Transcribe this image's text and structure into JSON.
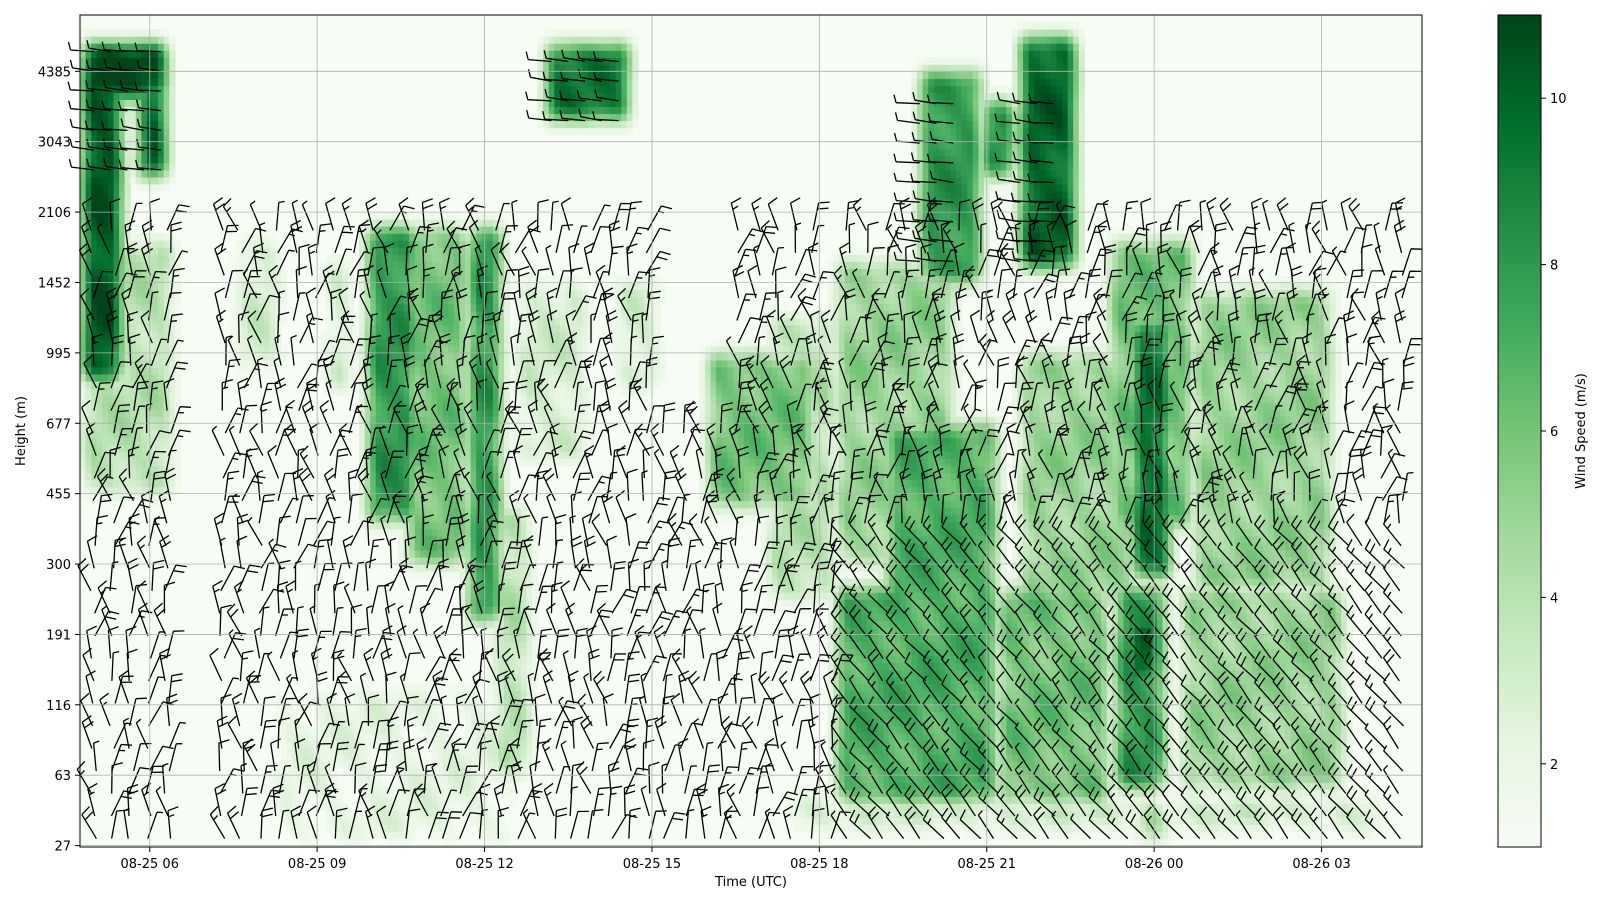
{
  "chart_data": {
    "type": "heatmap",
    "title": "",
    "xlabel": "Time (UTC)",
    "ylabel": "Height (m)",
    "x_tick_labels": [
      "08-25 06",
      "08-25 09",
      "08-25 12",
      "08-25 15",
      "08-25 18",
      "08-25 21",
      "08-26 00",
      "08-26 03"
    ],
    "x_tick_hours": [
      6,
      9,
      12,
      15,
      18,
      21,
      24,
      27
    ],
    "xlim_hours": [
      4.75,
      28.8
    ],
    "y_tick_labels": [
      "27",
      "63",
      "116",
      "191",
      "300",
      "455",
      "677",
      "995",
      "1452",
      "2106",
      "3043",
      "4385"
    ],
    "grid": true,
    "colormap": "Greens",
    "colorbar": {
      "label": "Wind Speed (m/s)",
      "ticks": [
        2,
        4,
        6,
        8,
        10
      ],
      "range": [
        1,
        11
      ]
    },
    "overlay": "wind barbs",
    "regions": [
      {
        "x": [
          4.8,
          5.5
        ],
        "levels": [
          6.6,
          11.4
        ],
        "value": 10.5
      },
      {
        "x": [
          4.8,
          6.3
        ],
        "levels": [
          10.6,
          11.4
        ],
        "value": 11
      },
      {
        "x": [
          5.8,
          6.3
        ],
        "levels": [
          9.5,
          11.4
        ],
        "value": 10
      },
      {
        "x": [
          13.1,
          14.6
        ],
        "levels": [
          10.3,
          11.4
        ],
        "value": 9
      },
      {
        "x": [
          19.8,
          20.9
        ],
        "levels": [
          8.0,
          11.0
        ],
        "value": 8
      },
      {
        "x": [
          21.6,
          22.6
        ],
        "levels": [
          8.2,
          11.5
        ],
        "value": 10
      },
      {
        "x": [
          20.9,
          21.5
        ],
        "levels": [
          9.5,
          10.6
        ],
        "value": 8
      },
      {
        "x": [
          4.8,
          6.4
        ],
        "levels": [
          5.0,
          8.6
        ],
        "value": 4
      },
      {
        "x": [
          7.6,
          8.3
        ],
        "levels": [
          6.8,
          8.6
        ],
        "value": 3
      },
      {
        "x": [
          9.2,
          9.6
        ],
        "levels": [
          6.5,
          8.3
        ],
        "value": 3
      },
      {
        "x": [
          9.9,
          10.8
        ],
        "levels": [
          4.6,
          8.8
        ],
        "value": 8
      },
      {
        "x": [
          10.6,
          11.7
        ],
        "levels": [
          4.0,
          8.8
        ],
        "value": 6
      },
      {
        "x": [
          11.7,
          12.3
        ],
        "levels": [
          3.2,
          8.8
        ],
        "value": 8
      },
      {
        "x": [
          12.2,
          12.8
        ],
        "levels": [
          1.0,
          4.8
        ],
        "value": 4
      },
      {
        "x": [
          12.6,
          13.8
        ],
        "levels": [
          5.5,
          8.0
        ],
        "value": 3
      },
      {
        "x": [
          14.4,
          15.1
        ],
        "levels": [
          6.5,
          8.0
        ],
        "value": 3
      },
      {
        "x": [
          16.0,
          17.9
        ],
        "levels": [
          4.8,
          7.0
        ],
        "value": 6
      },
      {
        "x": [
          17.1,
          18.3
        ],
        "levels": [
          3.5,
          7.5
        ],
        "value": 4
      },
      {
        "x": [
          18.3,
          20.4
        ],
        "levels": [
          4.0,
          8.3
        ],
        "value": 5
      },
      {
        "x": [
          19.2,
          21.2
        ],
        "levels": [
          3.3,
          6.0
        ],
        "value": 7
      },
      {
        "x": [
          21.6,
          23.7
        ],
        "levels": [
          3.3,
          7.0
        ],
        "value": 5
      },
      {
        "x": [
          18.3,
          21.2
        ],
        "levels": [
          0.6,
          3.7
        ],
        "value": 7
      },
      {
        "x": [
          21.2,
          23.2
        ],
        "levels": [
          0.6,
          3.7
        ],
        "value": 6
      },
      {
        "x": [
          23.2,
          24.7
        ],
        "levels": [
          4.5,
          8.6
        ],
        "value": 6
      },
      {
        "x": [
          23.6,
          24.3
        ],
        "levels": [
          3.8,
          7.5
        ],
        "value": 9.5
      },
      {
        "x": [
          23.3,
          24.2
        ],
        "levels": [
          0.8,
          3.7
        ],
        "value": 8
      },
      {
        "x": [
          23.5,
          24.1
        ],
        "levels": [
          2.3,
          3.2
        ],
        "value": 10
      },
      {
        "x": [
          24.7,
          27.2
        ],
        "levels": [
          3.6,
          7.9
        ],
        "value": 5
      },
      {
        "x": [
          24.5,
          27.4
        ],
        "levels": [
          0.8,
          3.7
        ],
        "value": 5
      },
      {
        "x": [
          17.5,
          28.0
        ],
        "levels": [
          0.25,
          0.7
        ],
        "value": 3
      },
      {
        "x": [
          23.7,
          24.2
        ],
        "levels": [
          0.1,
          0.6
        ],
        "value": 5
      },
      {
        "x": [
          8.3,
          12.5
        ],
        "levels": [
          0.1,
          2.2
        ],
        "value": 2
      }
    ]
  }
}
